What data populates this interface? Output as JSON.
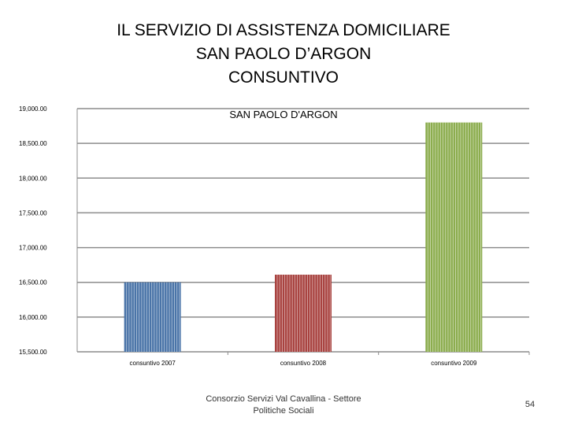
{
  "slide": {
    "title_lines": [
      "IL SERVIZIO DI ASSISTENZA DOMICILIARE",
      "SAN PAOLO D’ARGON",
      "CONSUNTIVO"
    ],
    "footer_lines": [
      "Consorzio Servizi Val Cavallina - Settore",
      "Politiche Sociali"
    ],
    "page_number": "54"
  },
  "chart_data": {
    "type": "bar",
    "title": "SAN PAOLO D'ARGON",
    "categories": [
      "consuntivo 2007",
      "consuntivo 2008",
      "consuntivo 2009"
    ],
    "values": [
      16500,
      16610,
      18800
    ],
    "colors": [
      "#4a74a8",
      "#a8423f",
      "#8cad4e"
    ],
    "ylim": [
      15500,
      19000
    ],
    "yticks": [
      15500,
      16000,
      16500,
      17000,
      17500,
      18000,
      18500,
      19000
    ],
    "ytick_labels": [
      "15,500.00",
      "16,000.00",
      "16,500.00",
      "17,000.00",
      "17,500.00",
      "18,000.00",
      "18,500.00",
      "19,000.00"
    ],
    "grid": true,
    "legend": false,
    "xlabel": "",
    "ylabel": ""
  }
}
